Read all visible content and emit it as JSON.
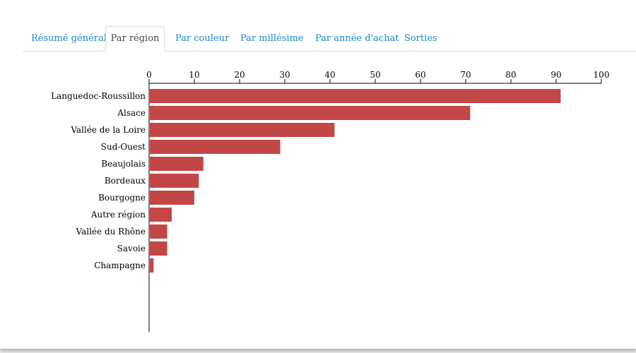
{
  "tabs": [
    {
      "label": "Résumé général",
      "active": false
    },
    {
      "label": "Par région",
      "active": true
    },
    {
      "label": "Par couleur",
      "active": false
    },
    {
      "label": "Par millésime",
      "active": false
    },
    {
      "label": "Par année d'achat",
      "active": false
    },
    {
      "label": "Sorties",
      "active": false
    }
  ],
  "colors": {
    "bar": "#c44747",
    "tab_link": "#1a86c8"
  },
  "chart_data": {
    "type": "bar",
    "orientation": "horizontal",
    "categories": [
      "Languedoc-Roussillon",
      "Alsace",
      "Vallée de la Loire",
      "Sud-Ouest",
      "Beaujolais",
      "Bordeaux",
      "Bourgogne",
      "Autre région",
      "Vallée du Rhône",
      "Savoie",
      "Champagne"
    ],
    "values": [
      91,
      71,
      41,
      29,
      12,
      11,
      10,
      5,
      4,
      4,
      1
    ],
    "xlim": [
      0,
      100
    ],
    "x_ticks": [
      0,
      10,
      20,
      30,
      40,
      50,
      60,
      70,
      80,
      90,
      100
    ],
    "x_axis_position": "top",
    "grid": false,
    "legend": "none"
  }
}
